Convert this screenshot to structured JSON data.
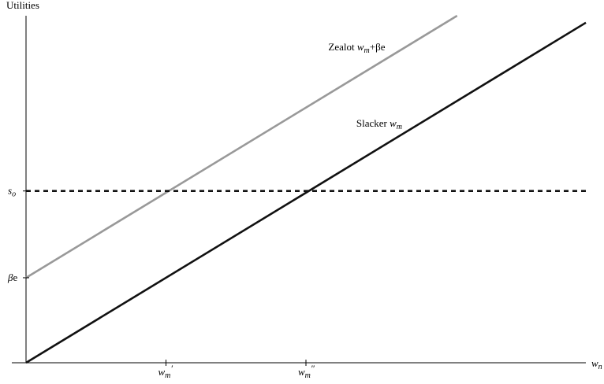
{
  "chart_data": {
    "type": "line",
    "title": "",
    "ylabel": "Utilities",
    "xlabel": "w_n",
    "xlim": [
      0,
      10
    ],
    "ylim": [
      0,
      10
    ],
    "grid": false,
    "legend": "none",
    "series": [
      {
        "name": "Zealot w_m+βe",
        "color": "#999999",
        "line_style": "solid",
        "x": [
          0,
          7.7
        ],
        "y": [
          2.45,
          10.0
        ]
      },
      {
        "name": "Slacker w_m",
        "color": "#111111",
        "line_style": "solid",
        "x": [
          0,
          10
        ],
        "y": [
          0,
          9.8
        ]
      },
      {
        "name": "",
        "color": "#111111",
        "line_style": "dashed",
        "x": [
          0,
          10
        ],
        "y": [
          4.95,
          4.95
        ]
      }
    ],
    "series_labels": [
      {
        "text_main": "Zealot ",
        "text_var": "w",
        "text_sub": "m",
        "text_tail": "+βe",
        "x": 5.4,
        "y": 9.0
      },
      {
        "text_main": "Slacker ",
        "text_var": "w",
        "text_sub": "m",
        "text_tail": "",
        "x": 5.9,
        "y": 6.8
      }
    ],
    "y_ticks": [
      {
        "value": 4.95,
        "var": "s",
        "sub": "o",
        "tail": ""
      },
      {
        "value": 2.45,
        "var": "β",
        "sub": "",
        "tail": "e"
      }
    ],
    "x_ticks": [
      {
        "value": 2.5,
        "var": "w",
        "sub": "m",
        "prime": "′"
      },
      {
        "value": 5.0,
        "var": "w",
        "sub": "m",
        "prime": "″"
      }
    ],
    "axis_labels": {
      "y": "Utilities",
      "x_var": "w",
      "x_sub": "n"
    }
  }
}
